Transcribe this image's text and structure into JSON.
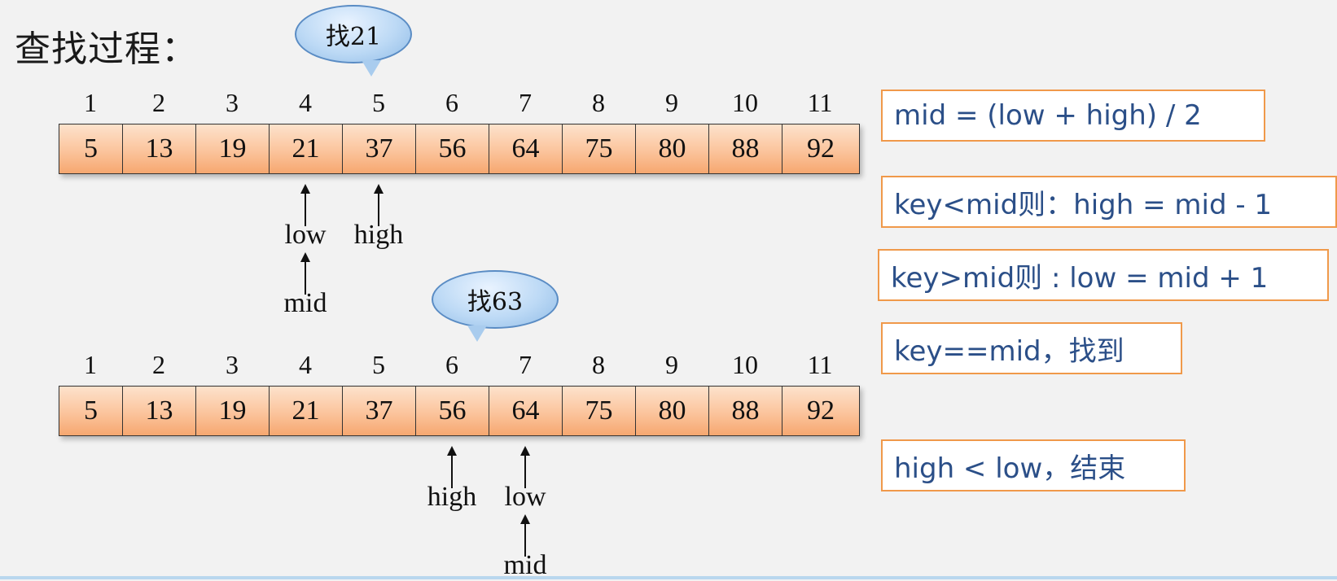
{
  "title": "查找过程：",
  "indices": [
    "1",
    "2",
    "3",
    "4",
    "5",
    "6",
    "7",
    "8",
    "9",
    "10",
    "11"
  ],
  "values": [
    "5",
    "13",
    "19",
    "21",
    "37",
    "56",
    "64",
    "75",
    "80",
    "88",
    "92"
  ],
  "search1": {
    "bubble": "找21",
    "pointers": [
      {
        "label": "low",
        "index": 4
      },
      {
        "label": "high",
        "index": 5
      },
      {
        "label": "mid",
        "index": 4
      }
    ]
  },
  "search2": {
    "bubble": "找63",
    "pointers": [
      {
        "label": "high",
        "index": 6
      },
      {
        "label": "low",
        "index": 7
      },
      {
        "label": "mid",
        "index": 7
      }
    ]
  },
  "rules": [
    "mid = (low + high) / 2",
    "key<mid则：high = mid - 1",
    "key>mid则 : low = mid + 1",
    "key==mid，找到",
    "high < low，结束"
  ]
}
